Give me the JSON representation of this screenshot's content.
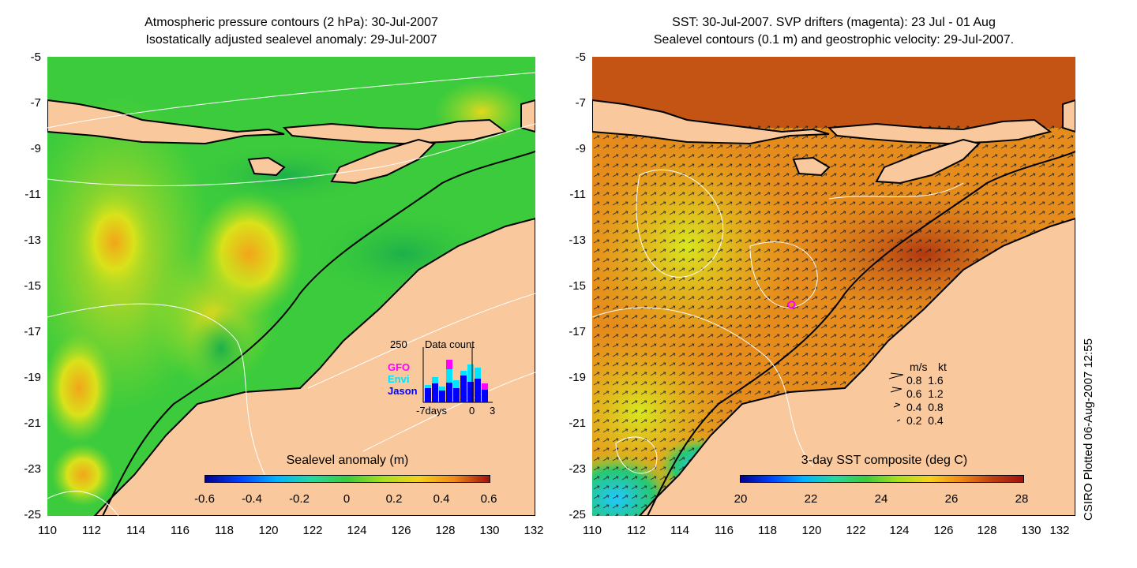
{
  "left_panel": {
    "title_line1": "Atmospheric pressure contours (2 hPa): 30-Jul-2007",
    "title_line2": "Isostatically adjusted sealevel anomaly: 29-Jul-2007",
    "colorbar_title": "Sealevel anomaly (m)",
    "colorbar_ticks": [
      "-0.6",
      "-0.4",
      "-0.2",
      "0",
      "0.2",
      "0.4",
      "0.6"
    ],
    "inset": {
      "y_max_label": "250",
      "title": "Data count",
      "legend": [
        {
          "name": "GFO",
          "color": "#ff00ff"
        },
        {
          "name": "Envi",
          "color": "#00e5ff"
        },
        {
          "name": "Jason",
          "color": "#0000ff"
        }
      ],
      "x_labels": [
        "-7days",
        "0",
        "3"
      ]
    }
  },
  "right_panel": {
    "title_line1": "SST: 30-Jul-2007. SVP drifters (magenta): 23 Jul - 01 Aug",
    "title_line2": "Sealevel contours (0.1 m) and geostrophic velocity: 29-Jul-2007.",
    "colorbar_title": "3-day SST composite (deg C)",
    "colorbar_ticks": [
      "20",
      "22",
      "24",
      "26",
      "28"
    ],
    "velocity_legend": {
      "header_ms": "m/s",
      "header_kt": "kt",
      "rows": [
        {
          "ms": "0.8",
          "kt": "1.6"
        },
        {
          "ms": "0.6",
          "kt": "1.2"
        },
        {
          "ms": "0.4",
          "kt": "0.8"
        },
        {
          "ms": "0.2",
          "kt": "0.4"
        }
      ]
    }
  },
  "y_axis_ticks": [
    "-5",
    "-7",
    "-9",
    "-11",
    "-13",
    "-15",
    "-17",
    "-19",
    "-21",
    "-23",
    "-25"
  ],
  "x_axis_ticks": [
    "110",
    "112",
    "114",
    "116",
    "118",
    "120",
    "122",
    "124",
    "126",
    "128",
    "130",
    "132"
  ],
  "footer_stamp": "CSIRO Plotted 06-Aug-2007 12:55",
  "colors": {
    "land": "#f9c89d",
    "ocean_left": "#3ccb3c",
    "ocean_right": "#e08a1e",
    "coast": "#000000"
  }
}
